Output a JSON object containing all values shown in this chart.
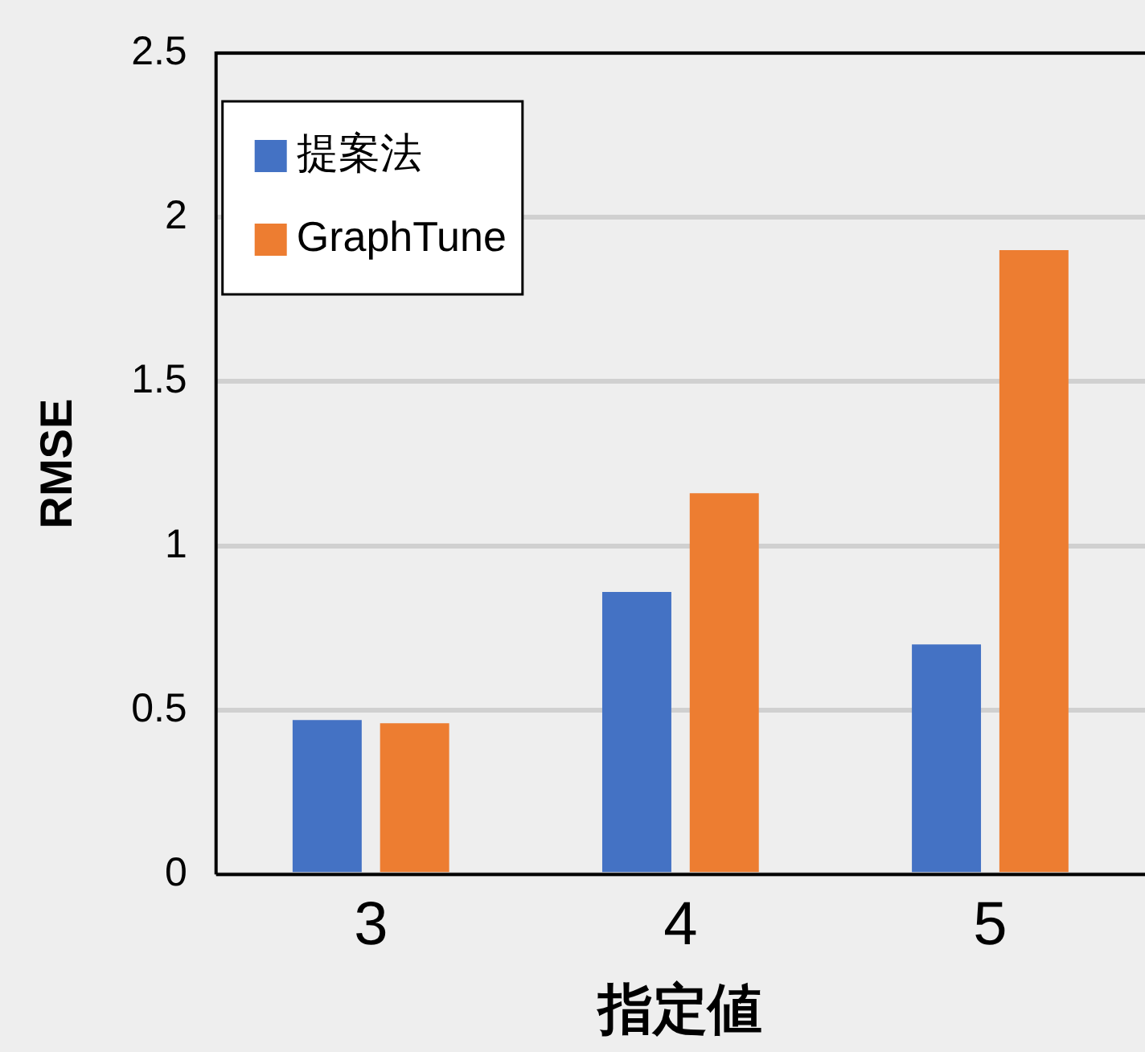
{
  "chart_data": {
    "type": "bar",
    "xlabel": "指定値",
    "ylabel": "RMSE",
    "categories": [
      "3",
      "4",
      "5"
    ],
    "series": [
      {
        "name": "提案法",
        "color": "#4472c4",
        "values": [
          0.47,
          0.86,
          0.7
        ]
      },
      {
        "name": "GraphTune",
        "color": "#ed7d31",
        "values": [
          0.46,
          1.16,
          1.9
        ]
      }
    ],
    "ylim": [
      0,
      2.5
    ],
    "yticks": [
      0,
      0.5,
      1,
      1.5,
      2,
      2.5
    ],
    "grid": "y",
    "legend": "top left"
  }
}
